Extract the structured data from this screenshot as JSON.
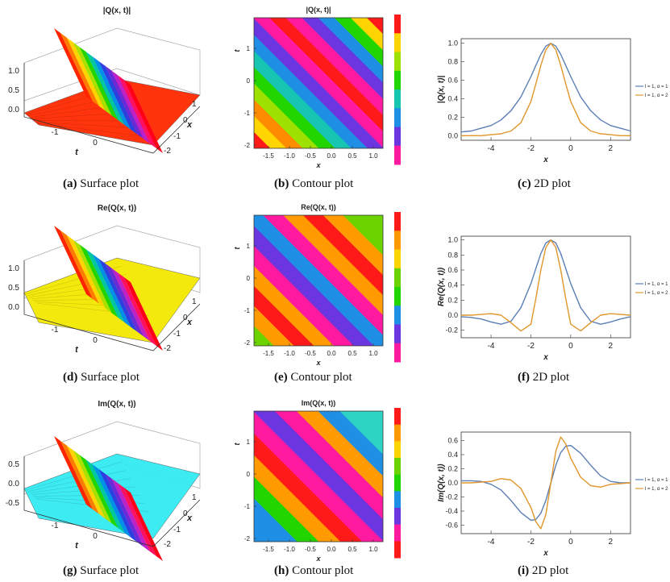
{
  "colors": {
    "series1": "#5b7fb5",
    "series2": "#e0962a",
    "frame": "#333333",
    "re_floor": "#f3e800",
    "im_floor": "#33eaf2",
    "abs_floor": "#ff2a00"
  },
  "rows": [
    {
      "surface": {
        "title": "|Q(x, t)|",
        "zticks": [
          "1.0",
          "0.5",
          "0.0"
        ],
        "tticks": [
          "-1",
          "0"
        ],
        "xticks": [
          "1",
          "0",
          "-1",
          "-2"
        ],
        "taxis": "t",
        "xaxis": "x",
        "floor": "abs"
      },
      "contour": {
        "title": "|Q(x, t)|",
        "xticks": [
          "-1.5",
          "-1.0",
          "-0.5",
          "0.0",
          "0.5",
          "1.0"
        ],
        "yticks": [
          "1",
          "0",
          "-1",
          "-2"
        ],
        "xlabel": "x",
        "ylabel": "t",
        "scheme": "abs"
      },
      "captions": [
        {
          "label": "(a)",
          "text": "Surface plot"
        },
        {
          "label": "(b)",
          "text": "Contour plot"
        },
        {
          "label": "(c)",
          "text": "2D plot"
        }
      ]
    },
    {
      "surface": {
        "title": "Re(Q(x, t))",
        "zticks": [
          "1.0",
          "0.5",
          "0.0"
        ],
        "tticks": [
          "-1",
          "0"
        ],
        "xticks": [
          "1",
          "0",
          "-1",
          "-2"
        ],
        "taxis": "t",
        "xaxis": "x",
        "floor": "re"
      },
      "contour": {
        "title": "Re(Q(x, t))",
        "xticks": [
          "-1.5",
          "-1.0",
          "-0.5",
          "0.0",
          "0.5",
          "1.0"
        ],
        "yticks": [
          "1",
          "0",
          "-1",
          "-2"
        ],
        "xlabel": "x",
        "ylabel": "t",
        "scheme": "re"
      },
      "captions": [
        {
          "label": "(d)",
          "text": "Surface plot"
        },
        {
          "label": "(e)",
          "text": "Contour plot"
        },
        {
          "label": "(f)",
          "text": "2D plot"
        }
      ]
    },
    {
      "surface": {
        "title": "Im(Q(x, t))",
        "zticks": [
          "0.5",
          "0.0",
          "-0.5"
        ],
        "tticks": [
          "-1",
          "0"
        ],
        "xticks": [
          "1",
          "0",
          "-1",
          "-2"
        ],
        "taxis": "t",
        "xaxis": "x",
        "floor": "im"
      },
      "contour": {
        "title": "Im(Q(x, t))",
        "xticks": [
          "-1.5",
          "-1.0",
          "-0.5",
          "0.0",
          "0.5",
          "1.0"
        ],
        "yticks": [
          "1",
          "0",
          "-1",
          "-2"
        ],
        "xlabel": "x",
        "ylabel": "t",
        "scheme": "im"
      },
      "captions": [
        {
          "label": "(g)",
          "text": "Surface plot"
        },
        {
          "label": "(h)",
          "text": "Contour plot"
        },
        {
          "label": "(i)",
          "text": "2D plot"
        }
      ]
    }
  ],
  "chart_data": [
    {
      "type": "line",
      "title": "",
      "xlabel": "x",
      "ylabel": "|Q(x, t)|",
      "xlim": [
        -5.5,
        3
      ],
      "ylim": [
        -0.05,
        1.05
      ],
      "xticks": [
        -4,
        -2,
        0,
        2
      ],
      "yticks": [
        0.0,
        0.2,
        0.4,
        0.6,
        0.8,
        1.0
      ],
      "x": [
        -5.5,
        -5,
        -4.5,
        -4,
        -3.5,
        -3,
        -2.5,
        -2,
        -1.75,
        -1.5,
        -1.25,
        -1,
        -0.75,
        -0.5,
        -0.25,
        0,
        0.5,
        1,
        1.5,
        2,
        2.5,
        3
      ],
      "series": [
        {
          "name": "l = 1, α = 1",
          "values": [
            0.04,
            0.05,
            0.08,
            0.11,
            0.17,
            0.27,
            0.42,
            0.64,
            0.76,
            0.88,
            0.97,
            1.0,
            0.97,
            0.88,
            0.76,
            0.64,
            0.42,
            0.27,
            0.17,
            0.11,
            0.08,
            0.05
          ]
        },
        {
          "name": "l = 1, α = 2",
          "values": [
            0.0,
            0.0,
            0.0,
            0.01,
            0.02,
            0.05,
            0.14,
            0.37,
            0.56,
            0.76,
            0.93,
            1.0,
            0.93,
            0.76,
            0.56,
            0.37,
            0.14,
            0.05,
            0.02,
            0.01,
            0.0,
            0.0
          ]
        }
      ],
      "legend": "right"
    },
    {
      "type": "line",
      "title": "",
      "xlabel": "x",
      "ylabel": "Re(Q(x, t))",
      "xlim": [
        -5.5,
        3
      ],
      "ylim": [
        -0.3,
        1.05
      ],
      "xticks": [
        -4,
        -2,
        0,
        2
      ],
      "yticks": [
        -0.2,
        0.0,
        0.2,
        0.4,
        0.6,
        0.8,
        1.0
      ],
      "x": [
        -5.5,
        -5,
        -4.5,
        -4,
        -3.5,
        -3,
        -2.5,
        -2,
        -1.75,
        -1.5,
        -1.25,
        -1,
        -0.75,
        -0.5,
        -0.25,
        0,
        0.5,
        1,
        1.5,
        2,
        2.5,
        3
      ],
      "series": [
        {
          "name": "l = 1, α = 1",
          "values": [
            -0.02,
            -0.03,
            -0.05,
            -0.09,
            -0.12,
            -0.08,
            0.1,
            0.42,
            0.62,
            0.82,
            0.96,
            1.0,
            0.96,
            0.82,
            0.62,
            0.42,
            0.1,
            -0.08,
            -0.12,
            -0.09,
            -0.05,
            -0.02
          ]
        },
        {
          "name": "l = 1, α = 2",
          "values": [
            0.0,
            0.0,
            0.01,
            0.02,
            0.0,
            -0.1,
            -0.21,
            -0.12,
            0.22,
            0.6,
            0.9,
            1.0,
            0.9,
            0.6,
            0.22,
            -0.12,
            -0.21,
            -0.1,
            0.0,
            0.02,
            0.01,
            0.0
          ]
        }
      ],
      "legend": "right"
    },
    {
      "type": "line",
      "title": "",
      "xlabel": "x",
      "ylabel": "Im(Q(x, t))",
      "xlim": [
        -5.5,
        3
      ],
      "ylim": [
        -0.72,
        0.72
      ],
      "xticks": [
        -4,
        -2,
        0,
        2
      ],
      "yticks": [
        -0.6,
        -0.4,
        -0.2,
        0.0,
        0.2,
        0.4,
        0.6
      ],
      "x": [
        -5.5,
        -5,
        -4.5,
        -4,
        -3.5,
        -3,
        -2.5,
        -2,
        -1.75,
        -1.5,
        -1.25,
        -1,
        -0.75,
        -0.5,
        -0.25,
        0,
        0.5,
        1,
        1.5,
        2,
        2.5,
        3
      ],
      "series": [
        {
          "name": "l = 1, α = 1",
          "values": [
            0.03,
            0.03,
            0.02,
            -0.02,
            -0.1,
            -0.25,
            -0.42,
            -0.53,
            -0.52,
            -0.43,
            -0.25,
            0.0,
            0.25,
            0.43,
            0.52,
            0.53,
            0.42,
            0.25,
            0.1,
            0.02,
            0.0,
            0.0
          ]
        },
        {
          "name": "l = 1, α = 2",
          "values": [
            0.0,
            0.0,
            0.01,
            0.02,
            0.06,
            0.04,
            -0.08,
            -0.35,
            -0.55,
            -0.65,
            -0.45,
            0.0,
            0.45,
            0.65,
            0.55,
            0.35,
            0.08,
            -0.04,
            -0.06,
            -0.02,
            -0.01,
            0.0
          ]
        }
      ],
      "legend": "right"
    }
  ]
}
